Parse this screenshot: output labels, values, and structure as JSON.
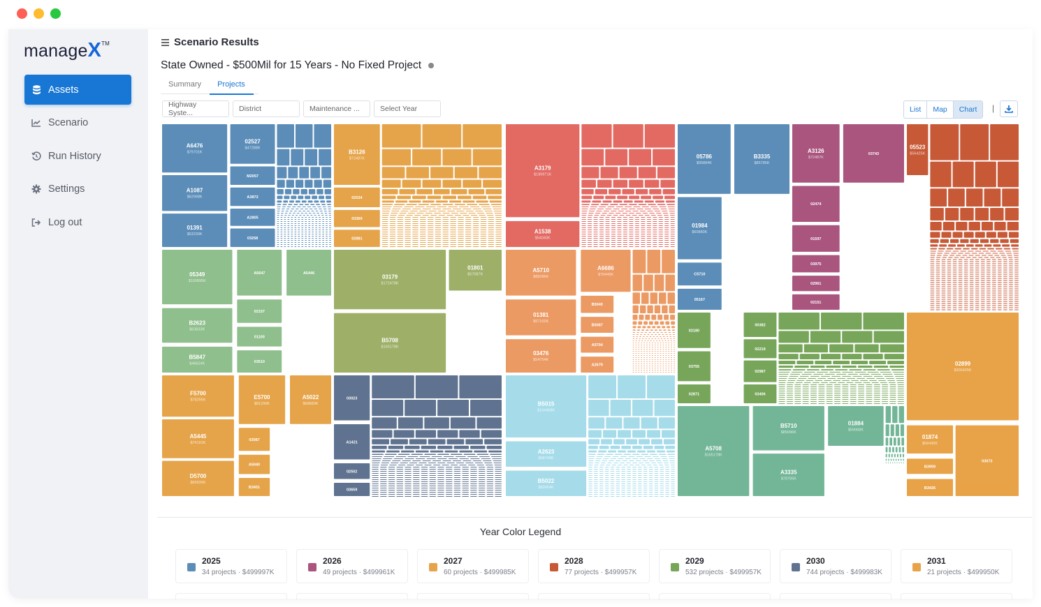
{
  "sidebar": {
    "logo_text": "manage",
    "logo_x": "X",
    "logo_tm": "TM",
    "items": [
      {
        "label": "Assets",
        "icon": "database-icon",
        "active": true
      },
      {
        "label": "Scenario",
        "icon": "chart-line-icon",
        "active": false
      },
      {
        "label": "Run History",
        "icon": "history-icon",
        "active": false
      },
      {
        "label": "Settings",
        "icon": "gear-icon",
        "active": false
      },
      {
        "label": "Log out",
        "icon": "sign-out-icon",
        "active": false
      }
    ]
  },
  "header": {
    "title": "Scenario Results",
    "scenario_name": "State Owned - $500Mil for 15 Years - No Fixed Project"
  },
  "tabs": [
    {
      "label": "Summary",
      "active": false
    },
    {
      "label": "Projects",
      "active": true
    }
  ],
  "filters": [
    {
      "placeholder": "Highway Syste..."
    },
    {
      "placeholder": "District"
    },
    {
      "placeholder": "Maintenance ..."
    },
    {
      "placeholder": "Select Year"
    }
  ],
  "view_toggle": {
    "list": "List",
    "map": "Map",
    "chart": "Chart",
    "active": "Chart",
    "separator": "|"
  },
  "colors": {
    "2025": "#5b8db8",
    "2026": "#a9557e",
    "2027": "#e6a44a",
    "2028": "#c75937",
    "2029": "#77a65a",
    "2030": "#5f7390",
    "2031": "#e8a348",
    "2032": "#e36a63",
    "2033": "#ec9a63",
    "2034": "#8fbf8c",
    "2035": "#9eb068",
    "2036": "#a6dcea",
    "2037": "#72b697",
    "accent": "#1877d4"
  },
  "treemap": {
    "groups": [
      {
        "year": "2025",
        "labels": [
          [
            "A6476",
            "$79701K"
          ],
          [
            "A1087",
            "$62998K"
          ],
          [
            "01391",
            "$53230K"
          ],
          [
            "02527",
            "$47288K"
          ],
          [
            "M2057",
            ""
          ],
          [
            "A3872",
            ""
          ],
          [
            "A2805",
            ""
          ],
          [
            "03258",
            ""
          ]
        ]
      },
      {
        "year": "2027",
        "labels": [
          [
            "B3126",
            "$72487K"
          ],
          [
            "02534",
            ""
          ],
          [
            "03369",
            ""
          ],
          [
            "02881",
            ""
          ]
        ]
      },
      {
        "year": "2032",
        "labels": [
          [
            "A3179",
            "$189971K"
          ],
          [
            "A1538",
            "$54040K"
          ]
        ]
      },
      {
        "year": "2025",
        "labels": [
          [
            "05786",
            "$95884K"
          ],
          [
            "B3335",
            "$85785K"
          ],
          [
            "01984",
            "$60880K"
          ],
          [
            "C5710",
            ""
          ],
          [
            "05167",
            ""
          ]
        ]
      },
      {
        "year": "2026",
        "labels": [
          [
            "A3126",
            "$72487K"
          ],
          [
            "03743",
            ""
          ],
          [
            "02474",
            ""
          ],
          [
            "01597",
            ""
          ],
          [
            "03975",
            ""
          ],
          [
            "02961",
            ""
          ],
          [
            "02151",
            ""
          ]
        ]
      },
      {
        "year": "2028",
        "labels": [
          [
            "05523",
            "$56425K"
          ]
        ]
      },
      {
        "year": "2034",
        "labels": [
          [
            "05349",
            "$100895K"
          ],
          [
            "B2623",
            "$63833K"
          ],
          [
            "B5847",
            "$46624K"
          ],
          [
            "A5647",
            ""
          ],
          [
            "A5446",
            ""
          ],
          [
            "02157",
            ""
          ],
          [
            "01100",
            ""
          ],
          [
            "03510",
            ""
          ]
        ]
      },
      {
        "year": "2035",
        "labels": [
          [
            "03179",
            "$172478K"
          ],
          [
            "B5708",
            "$165178K"
          ],
          [
            "01801",
            "$57087K"
          ]
        ]
      },
      {
        "year": "2033",
        "labels": [
          [
            "A5710",
            "$85096K"
          ],
          [
            "A6686",
            "$79445K"
          ],
          [
            "01381",
            "$67102K"
          ],
          [
            "03476",
            "$54754K"
          ],
          [
            "B5040",
            ""
          ],
          [
            "B5087",
            ""
          ],
          [
            "A5704",
            ""
          ],
          [
            "A2679",
            ""
          ]
        ]
      },
      {
        "year": "2029",
        "labels": [
          [
            "02180",
            ""
          ],
          [
            "03755",
            ""
          ],
          [
            "02871",
            ""
          ],
          [
            "00382",
            ""
          ],
          [
            "02219",
            ""
          ],
          [
            "02987",
            ""
          ],
          [
            "03406",
            ""
          ]
        ]
      },
      {
        "year": "2027",
        "labels": [
          [
            "F5700",
            "$78295K"
          ],
          [
            "A5445",
            "$74101K"
          ],
          [
            "D5700",
            "$69936K"
          ],
          [
            "E5700",
            "$81290K"
          ],
          [
            "A5022",
            "$68883K"
          ],
          [
            "03087",
            ""
          ],
          [
            "A5040",
            ""
          ],
          [
            "B3451",
            ""
          ]
        ]
      },
      {
        "year": "2030",
        "labels": [
          [
            "03023",
            ""
          ],
          [
            "A1421",
            ""
          ],
          [
            "02502",
            ""
          ],
          [
            "03659",
            ""
          ]
        ]
      },
      {
        "year": "2036",
        "labels": [
          [
            "B5015",
            "$104468K"
          ],
          [
            "A2623",
            "$68748K"
          ],
          [
            "B5022",
            "$60454K"
          ]
        ]
      },
      {
        "year": "2037",
        "labels": [
          [
            "A5708",
            "$165178K"
          ],
          [
            "B5710",
            "$85096K"
          ],
          [
            "A3335",
            "$78765K"
          ],
          [
            "01884",
            "$59068K"
          ]
        ]
      },
      {
        "year": "2031",
        "labels": [
          [
            "02899",
            "$300425K"
          ],
          [
            "01874",
            "$56436K"
          ],
          [
            "B3959",
            ""
          ],
          [
            "B3426",
            ""
          ],
          [
            "03073",
            ""
          ]
        ]
      }
    ]
  },
  "legend": {
    "title": "Year Color Legend",
    "items": [
      {
        "year": "2025",
        "detail": "34 projects · $499997K",
        "color": "#5b8db8"
      },
      {
        "year": "2026",
        "detail": "49 projects · $499961K",
        "color": "#a9557e"
      },
      {
        "year": "2027",
        "detail": "60 projects · $499985K",
        "color": "#e6a44a"
      },
      {
        "year": "2028",
        "detail": "77 projects · $499957K",
        "color": "#c75937"
      },
      {
        "year": "2029",
        "detail": "532 projects · $499957K",
        "color": "#77a65a"
      },
      {
        "year": "2030",
        "detail": "744 projects · $499983K",
        "color": "#5f7390"
      },
      {
        "year": "2031",
        "detail": "21 projects · $499950K",
        "color": "#e8a348"
      }
    ]
  }
}
